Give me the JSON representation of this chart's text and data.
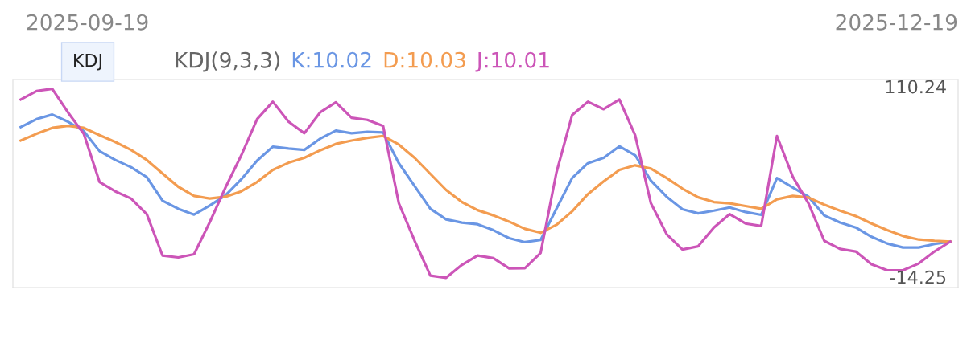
{
  "chart_data": {
    "type": "line",
    "title": "KDJ(9,3,3)",
    "annotations": [
      "2025-09-19",
      "2025-12-19",
      "KDJ"
    ],
    "categories": [
      null,
      null,
      null,
      null,
      null,
      null,
      null,
      null,
      null,
      null,
      null,
      null,
      null,
      null,
      null,
      null,
      null,
      null,
      null,
      null,
      null,
      null,
      null,
      null,
      null,
      null,
      null,
      null,
      null,
      null,
      null,
      null,
      null,
      null,
      null,
      null,
      null,
      null,
      null,
      null,
      null,
      null,
      null,
      null,
      null,
      null,
      null,
      null,
      null,
      null,
      null,
      null,
      null,
      null,
      null,
      null,
      null,
      null,
      null,
      null
    ],
    "series": [
      {
        "name": "K:10.02",
        "color": "#6a96e4",
        "values": [
          84.9,
          90.1,
          93.1,
          88.4,
          82.3,
          69.2,
          63.4,
          58.7,
          52.2,
          36.8,
          31.5,
          27.7,
          33.6,
          40.3,
          50.8,
          63.0,
          72.1,
          70.9,
          70.0,
          77.3,
          82.6,
          80.9,
          81.8,
          81.4,
          61.3,
          46.4,
          31.5,
          24.6,
          22.5,
          21.4,
          17.5,
          12.3,
          9.7,
          11.1,
          31.5,
          51.6,
          61.3,
          64.8,
          72.3,
          66.5,
          49.9,
          39.4,
          31.2,
          28.5,
          30.3,
          32.4,
          29.4,
          27.5,
          51.6,
          45.5,
          39.4,
          27.2,
          22.5,
          19.3,
          13.2,
          8.8,
          6.2,
          6.2,
          8.5,
          10.02
        ]
      },
      {
        "name": "D:10.03",
        "color": "#f39c50",
        "values": [
          76.1,
          80.5,
          84.4,
          85.7,
          84.4,
          79.6,
          75.2,
          70.0,
          63.4,
          54.6,
          45.9,
          39.9,
          38.2,
          39.4,
          42.9,
          49.0,
          56.9,
          61.6,
          64.8,
          69.7,
          73.9,
          76.1,
          77.9,
          79.1,
          73.5,
          64.8,
          54.3,
          43.8,
          35.9,
          30.6,
          27.2,
          23.1,
          18.4,
          15.8,
          21.0,
          29.8,
          41.1,
          49.4,
          56.9,
          59.9,
          57.8,
          51.6,
          44.7,
          39.0,
          35.9,
          35.1,
          33.3,
          31.5,
          37.7,
          39.9,
          38.9,
          34.2,
          30.3,
          26.7,
          21.9,
          17.5,
          13.7,
          11.4,
          10.6,
          10.03
        ]
      },
      {
        "name": "J:10.01",
        "color": "#cc55b8",
        "values": [
          102.9,
          108.5,
          109.9,
          94.5,
          80.5,
          49.0,
          42.9,
          38.2,
          28.0,
          0.9,
          -0.3,
          1.8,
          22.8,
          45.5,
          66.5,
          90.1,
          101.5,
          88.4,
          80.9,
          94.5,
          101.1,
          91.0,
          89.6,
          85.7,
          35.1,
          10.6,
          -12.2,
          -13.6,
          -5.2,
          0.9,
          -0.8,
          -7.5,
          -7.3,
          2.7,
          55.1,
          92.8,
          101.5,
          96.6,
          102.9,
          79.6,
          35.1,
          14.9,
          4.9,
          7.0,
          19.3,
          28.0,
          21.9,
          20.2,
          79.1,
          52.5,
          35.1,
          10.6,
          5.3,
          3.6,
          -4.8,
          -8.7,
          -8.7,
          -4.3,
          3.6,
          10.01
        ]
      }
    ],
    "ylim": [
      -20,
      116
    ],
    "yticks": [
      -14.25,
      110.24
    ],
    "legend": "top left",
    "marker": "none",
    "line_style": "solid"
  }
}
